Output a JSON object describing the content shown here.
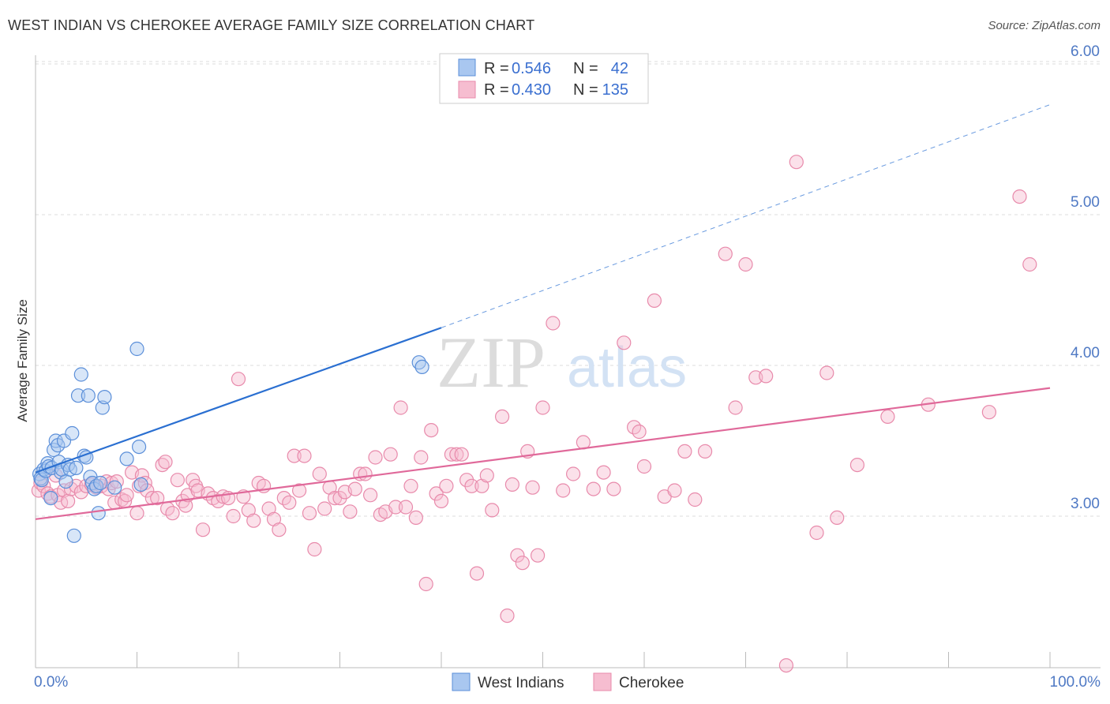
{
  "title": "WEST INDIAN VS CHEROKEE AVERAGE FAMILY SIZE CORRELATION CHART",
  "source": "Source: ZipAtlas.com",
  "watermark": {
    "zip": "ZIP",
    "atlas": "atlas"
  },
  "legend": {
    "row1": {
      "r_label": "R = ",
      "r_value": "0.546",
      "n_label": "N = ",
      "n_value": "42"
    },
    "row2": {
      "r_label": "R = ",
      "r_value": "0.430",
      "n_label": "N = ",
      "n_value": "135"
    }
  },
  "colors": {
    "blue_fill": "#a9c7f0",
    "blue_stroke": "#5b8fd9",
    "blue_line": "#2a6fd1",
    "pink_fill": "#f6bdd0",
    "pink_stroke": "#e88aab",
    "pink_line": "#e0699a",
    "grid": "#dddddd",
    "axis_text": "#4f79c4"
  },
  "chart_data": {
    "type": "scatter",
    "title": "WEST INDIAN VS CHEROKEE AVERAGE FAMILY SIZE CORRELATION CHART",
    "xlabel": "",
    "ylabel": "Average Family Size",
    "xlim": [
      0,
      100
    ],
    "ylim": [
      2.0,
      6.1
    ],
    "x_tick_labels": [
      "0.0%",
      "100.0%"
    ],
    "y_ticks": [
      3.0,
      4.0,
      5.0,
      6.0
    ],
    "y_tick_labels": [
      "3.00",
      "4.00",
      "5.00",
      "6.00"
    ],
    "grid": true,
    "legend_position": "top-center",
    "series": [
      {
        "name": "West Indians",
        "R": 0.546,
        "N": 42,
        "trend": {
          "x0": 0,
          "y0": 3.29,
          "x1": 40,
          "y1": 4.25,
          "dash_to_x": 100,
          "dash_to_y": 5.73
        },
        "points": [
          [
            0.4,
            3.28
          ],
          [
            0.5,
            3.25
          ],
          [
            0.6,
            3.24
          ],
          [
            0.8,
            3.31
          ],
          [
            1.0,
            3.3
          ],
          [
            1.2,
            3.35
          ],
          [
            1.3,
            3.33
          ],
          [
            1.5,
            3.12
          ],
          [
            1.6,
            3.32
          ],
          [
            1.8,
            3.44
          ],
          [
            2.0,
            3.5
          ],
          [
            2.2,
            3.47
          ],
          [
            2.3,
            3.36
          ],
          [
            2.5,
            3.29
          ],
          [
            2.6,
            3.31
          ],
          [
            2.8,
            3.5
          ],
          [
            3.0,
            3.23
          ],
          [
            3.2,
            3.34
          ],
          [
            3.4,
            3.31
          ],
          [
            3.6,
            3.55
          ],
          [
            3.8,
            2.87
          ],
          [
            4.0,
            3.32
          ],
          [
            4.2,
            3.8
          ],
          [
            4.5,
            3.94
          ],
          [
            4.8,
            3.4
          ],
          [
            5.0,
            3.39
          ],
          [
            5.2,
            3.8
          ],
          [
            5.4,
            3.26
          ],
          [
            5.6,
            3.22
          ],
          [
            5.8,
            3.18
          ],
          [
            6.0,
            3.2
          ],
          [
            6.2,
            3.02
          ],
          [
            6.4,
            3.22
          ],
          [
            6.6,
            3.72
          ],
          [
            6.8,
            3.79
          ],
          [
            7.8,
            3.19
          ],
          [
            9.0,
            3.38
          ],
          [
            10.0,
            4.11
          ],
          [
            10.2,
            3.46
          ],
          [
            10.4,
            3.21
          ],
          [
            37.8,
            4.02
          ],
          [
            38.1,
            3.99
          ]
        ]
      },
      {
        "name": "Cherokee",
        "R": 0.43,
        "N": 135,
        "trend": {
          "x0": 0,
          "y0": 2.98,
          "x1": 100,
          "y1": 3.85
        },
        "points": [
          [
            0.3,
            3.17
          ],
          [
            0.5,
            3.22
          ],
          [
            0.8,
            3.2
          ],
          [
            1.2,
            3.15
          ],
          [
            1.5,
            3.13
          ],
          [
            2.0,
            3.27
          ],
          [
            2.2,
            3.14
          ],
          [
            2.5,
            3.09
          ],
          [
            2.8,
            3.17
          ],
          [
            3.2,
            3.1
          ],
          [
            3.5,
            3.18
          ],
          [
            4.0,
            3.2
          ],
          [
            4.5,
            3.16
          ],
          [
            5.0,
            3.2
          ],
          [
            5.5,
            3.21
          ],
          [
            6.0,
            3.19
          ],
          [
            6.5,
            3.2
          ],
          [
            7.0,
            3.23
          ],
          [
            7.2,
            3.18
          ],
          [
            7.5,
            3.22
          ],
          [
            7.8,
            3.09
          ],
          [
            8.0,
            3.23
          ],
          [
            8.5,
            3.11
          ],
          [
            8.8,
            3.1
          ],
          [
            9.0,
            3.14
          ],
          [
            9.5,
            3.29
          ],
          [
            10.0,
            3.02
          ],
          [
            10.2,
            3.2
          ],
          [
            10.5,
            3.27
          ],
          [
            10.8,
            3.22
          ],
          [
            11.0,
            3.17
          ],
          [
            11.5,
            3.12
          ],
          [
            12.0,
            3.12
          ],
          [
            12.5,
            3.34
          ],
          [
            12.8,
            3.36
          ],
          [
            13.0,
            3.05
          ],
          [
            13.5,
            3.02
          ],
          [
            14.0,
            3.24
          ],
          [
            14.5,
            3.1
          ],
          [
            14.8,
            3.07
          ],
          [
            15.0,
            3.14
          ],
          [
            15.5,
            3.24
          ],
          [
            15.8,
            3.2
          ],
          [
            16.0,
            3.17
          ],
          [
            16.5,
            2.91
          ],
          [
            17.0,
            3.15
          ],
          [
            17.5,
            3.12
          ],
          [
            18.0,
            3.1
          ],
          [
            18.5,
            3.13
          ],
          [
            19.0,
            3.12
          ],
          [
            19.5,
            3.0
          ],
          [
            20.0,
            3.91
          ],
          [
            20.5,
            3.13
          ],
          [
            21.0,
            3.04
          ],
          [
            21.5,
            2.97
          ],
          [
            22.0,
            3.22
          ],
          [
            22.5,
            3.2
          ],
          [
            23.0,
            3.05
          ],
          [
            23.5,
            2.98
          ],
          [
            24.0,
            2.91
          ],
          [
            24.5,
            3.12
          ],
          [
            25.0,
            3.09
          ],
          [
            25.5,
            3.4
          ],
          [
            26.0,
            3.17
          ],
          [
            26.5,
            3.4
          ],
          [
            27.0,
            3.02
          ],
          [
            27.5,
            2.78
          ],
          [
            28.0,
            3.28
          ],
          [
            28.5,
            3.05
          ],
          [
            29.0,
            3.19
          ],
          [
            29.5,
            3.12
          ],
          [
            30.0,
            3.12
          ],
          [
            30.5,
            3.16
          ],
          [
            31.0,
            3.03
          ],
          [
            31.5,
            3.18
          ],
          [
            32.0,
            3.28
          ],
          [
            32.5,
            3.28
          ],
          [
            33.0,
            3.14
          ],
          [
            33.5,
            3.39
          ],
          [
            34.0,
            3.01
          ],
          [
            34.5,
            3.03
          ],
          [
            35.0,
            3.41
          ],
          [
            35.5,
            3.06
          ],
          [
            36.0,
            3.72
          ],
          [
            36.5,
            3.06
          ],
          [
            37.0,
            3.2
          ],
          [
            37.5,
            2.99
          ],
          [
            38.0,
            3.39
          ],
          [
            38.5,
            2.55
          ],
          [
            39.0,
            3.57
          ],
          [
            39.5,
            3.15
          ],
          [
            40.0,
            3.1
          ],
          [
            40.5,
            3.2
          ],
          [
            41.0,
            3.41
          ],
          [
            41.5,
            3.41
          ],
          [
            42.0,
            3.41
          ],
          [
            42.5,
            3.24
          ],
          [
            43.0,
            3.2
          ],
          [
            43.5,
            2.62
          ],
          [
            44.0,
            3.2
          ],
          [
            44.5,
            3.27
          ],
          [
            45.0,
            3.04
          ],
          [
            46.0,
            3.66
          ],
          [
            46.5,
            2.34
          ],
          [
            47.0,
            3.21
          ],
          [
            47.5,
            2.74
          ],
          [
            48.0,
            2.69
          ],
          [
            48.5,
            3.43
          ],
          [
            49.0,
            3.19
          ],
          [
            49.5,
            2.74
          ],
          [
            50.0,
            3.72
          ],
          [
            51.0,
            4.28
          ],
          [
            52.0,
            3.17
          ],
          [
            53.0,
            3.28
          ],
          [
            54.0,
            3.49
          ],
          [
            55.0,
            3.18
          ],
          [
            56.0,
            3.29
          ],
          [
            57.0,
            3.18
          ],
          [
            58.0,
            4.15
          ],
          [
            59.0,
            3.59
          ],
          [
            59.5,
            3.56
          ],
          [
            60.0,
            3.33
          ],
          [
            61.0,
            4.43
          ],
          [
            62.0,
            3.13
          ],
          [
            63.0,
            3.17
          ],
          [
            64.0,
            3.43
          ],
          [
            65.0,
            3.11
          ],
          [
            66.0,
            3.43
          ],
          [
            68.0,
            4.74
          ],
          [
            69.0,
            3.72
          ],
          [
            70.0,
            4.67
          ],
          [
            71.0,
            3.92
          ],
          [
            72.0,
            3.93
          ],
          [
            74.0,
            2.01
          ],
          [
            75.0,
            5.35
          ],
          [
            77.0,
            2.89
          ],
          [
            78.0,
            3.95
          ],
          [
            79.0,
            2.99
          ],
          [
            81.0,
            3.34
          ],
          [
            84.0,
            3.66
          ],
          [
            88.0,
            3.74
          ],
          [
            94.0,
            3.69
          ],
          [
            97.0,
            5.12
          ],
          [
            98.0,
            4.67
          ]
        ]
      }
    ]
  }
}
